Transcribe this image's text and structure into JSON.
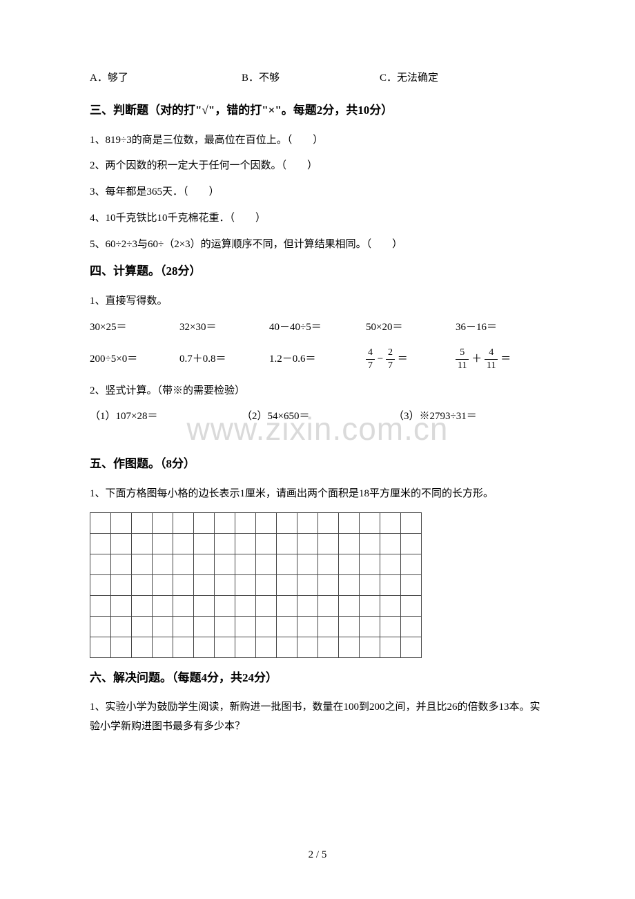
{
  "mc_options": {
    "a": "A．够了",
    "b": "B．不够",
    "c": "C．无法确定"
  },
  "section3": {
    "heading": "三、判断题（对的打\"√\"，错的打\"×\"。每题2分，共10分）",
    "q1": "1、819÷3的商是三位数，最高位在百位上。（　　）",
    "q2": "2、两个因数的积一定大于任何一个因数。（　　）",
    "q3": "3、每年都是365天．（　　）",
    "q4": "4、10千克铁比10千克棉花重．（　　）",
    "q5": "5、60÷2÷3与60÷（2×3）的运算顺序不同，但计算结果相同。（　　）"
  },
  "section4": {
    "heading": "四、计算题。（28分）",
    "q1_label": "1、直接写得数。",
    "row1": {
      "c1": "30×25＝",
      "c2": "32×30＝",
      "c3": "40－40÷5＝",
      "c4": "50×20＝",
      "c5": "36－16＝"
    },
    "row2": {
      "c1": "200÷5×0＝",
      "c2": "0.7＋0.8＝",
      "c3": "1.2－0.6＝"
    },
    "frac1": {
      "n1": "4",
      "d1": "7",
      "op": "−",
      "n2": "2",
      "d2": "7",
      "eq": "＝"
    },
    "frac2": {
      "n1": "5",
      "d1": "11",
      "op": "＋",
      "n2": "4",
      "d2": "11",
      "eq": "＝"
    },
    "q2_label": "2、竖式计算。（带※的需要检验）",
    "vert": {
      "c1": "（1）107×28＝",
      "c2": "（2）54×650＝",
      "c3": "（3）※2793÷31＝"
    }
  },
  "section5": {
    "heading": "五、作图题。（8分）",
    "q1": "1、下面方格图每小格的边长表示1厘米，请画出两个面积是18平方厘米的不同的长方形。",
    "grid_cols": 16,
    "grid_rows": 7
  },
  "section6": {
    "heading": "六、解决问题。（每题4分，共24分）",
    "q1": "1、实验小学为鼓励学生阅读，新购进一批图书，数量在100到200之间，并且比26的倍数多13本。实验小学新购进图书最多有多少本？"
  },
  "watermark": "www.zixin.com.cn",
  "page_num": "2 / 5",
  "colors": {
    "text": "#000000",
    "bg": "#ffffff",
    "grid_border": "#444444",
    "watermark": "rgba(140,140,140,0.32)"
  }
}
